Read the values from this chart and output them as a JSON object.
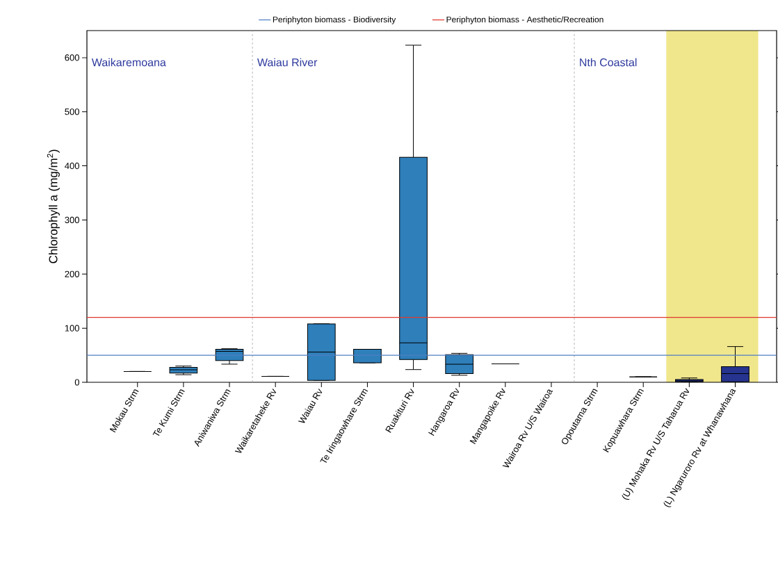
{
  "chart_data": {
    "type": "box",
    "ylabel": "Chlorophyll a (mg/m$^{2}$)",
    "categories": [
      "Mokau Strm",
      "Te Kumi Strm",
      "Aniwaniwa Strm",
      "Waikaretaheke Rv",
      "Waiau Rv",
      "Te Iringaowhare Strm",
      "Ruakituri Rv",
      "Hangaroa Rv",
      "Mangapoike Rv",
      "Wairoa Rv U/S Wairoa",
      "Opoutama Strm",
      "Kopuawhara Strm",
      "(U) Mohaka Rv U/S Taharua Rv",
      "(L) Ngaruroro Rv at Whanawhana"
    ],
    "boxes": [
      {
        "low": 20,
        "q1": 20,
        "median": 20,
        "q3": 20,
        "high": 20
      },
      {
        "low": 14,
        "q1": 17,
        "median": 23,
        "q3": 27.5,
        "high": 30
      },
      {
        "low": 33.5,
        "q1": 40,
        "median": 57,
        "q3": 61,
        "high": 62
      },
      {
        "low": 11,
        "q1": 11,
        "median": 11,
        "q3": 11,
        "high": 11
      },
      {
        "low": 3.5,
        "q1": 3.5,
        "median": 56,
        "q3": 108,
        "high": 108
      },
      {
        "low": 36,
        "q1": 36,
        "median": 61,
        "q3": 61,
        "high": 61
      },
      {
        "low": 23.5,
        "q1": 42,
        "median": 73,
        "q3": 416,
        "high": 623
      },
      {
        "low": 13,
        "q1": 16,
        "median": 33.5,
        "q3": 51,
        "high": 53.5
      },
      {
        "low": 34,
        "q1": 34,
        "median": 34,
        "q3": 34,
        "high": 34
      },
      null,
      null,
      {
        "low": 10,
        "q1": 10,
        "median": 10,
        "q3": 10,
        "high": 10
      },
      {
        "low": 1,
        "q1": 1,
        "median": 2.5,
        "q3": 5,
        "high": 8
      },
      {
        "low": 1,
        "q1": 1,
        "median": 16,
        "q3": 29,
        "high": 66
      }
    ],
    "colors": [
      "#000000",
      "#2e7fba",
      "#2e7fba",
      "#000000",
      "#2e7fba",
      "#2e7fba",
      "#2e7fba",
      "#2e7fba",
      "#000000",
      null,
      null,
      "#000000",
      "#26348f",
      "#26348f"
    ],
    "ylim": [
      0,
      650
    ],
    "yticks": [
      0,
      100,
      200,
      300,
      400,
      500,
      600
    ],
    "ref_lines": [
      {
        "axis": "y",
        "value": 50,
        "label": "Periphyton biomass - Biodiversity",
        "color": "#4f7fc4"
      },
      {
        "axis": "y",
        "value": 120,
        "label": "Periphyton biomass - Aesthetic/Recreation",
        "color": "#e0382f"
      }
    ],
    "annotations": [
      "Waikaremoana",
      "Waiau River",
      "Nth Coastal"
    ],
    "legend": "top"
  }
}
